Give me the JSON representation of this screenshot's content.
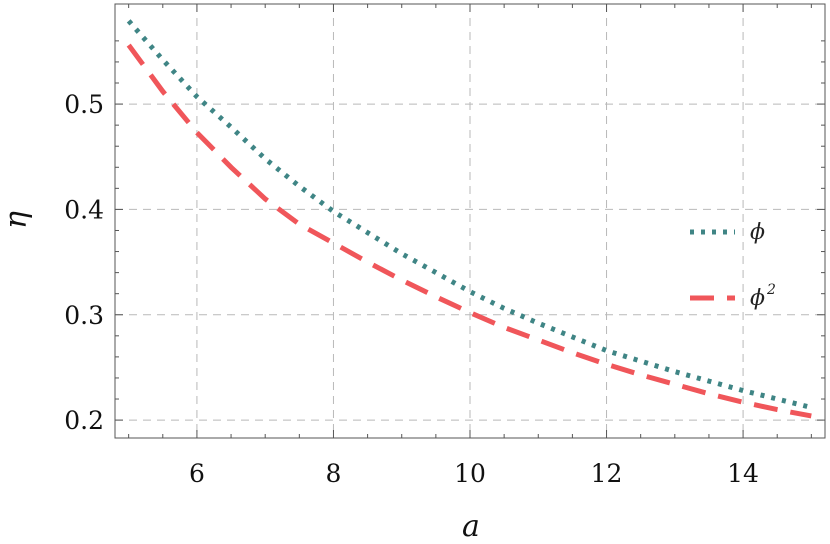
{
  "chart_data": {
    "type": "line",
    "xlabel": "a",
    "ylabel": "η",
    "xlim": [
      4.8,
      15.2
    ],
    "ylim": [
      0.183,
      0.595
    ],
    "x_ticks": [
      6,
      8,
      10,
      12,
      14
    ],
    "y_ticks": [
      0.2,
      0.3,
      0.4,
      0.5
    ],
    "x_tick_labels": [
      "6",
      "8",
      "10",
      "12",
      "14"
    ],
    "y_tick_labels": [
      "0.2",
      "0.3",
      "0.4",
      "0.5"
    ],
    "grid": true,
    "legend_position": "right",
    "series": [
      {
        "name": "ϕ",
        "style": "dotted",
        "color": "#3f8585",
        "x": [
          5,
          5.5,
          6,
          6.5,
          7,
          7.5,
          8,
          8.5,
          9,
          9.5,
          10,
          10.5,
          11,
          11.5,
          12,
          12.5,
          13,
          13.5,
          14,
          14.5,
          15
        ],
        "y": [
          0.579,
          0.542,
          0.507,
          0.478,
          0.448,
          0.422,
          0.398,
          0.378,
          0.358,
          0.34,
          0.322,
          0.306,
          0.292,
          0.279,
          0.266,
          0.256,
          0.246,
          0.237,
          0.228,
          0.22,
          0.212
        ]
      },
      {
        "name": "ϕ",
        "name_sup": "2",
        "style": "dashed",
        "color": "#f0565a",
        "x": [
          5,
          5.5,
          6,
          6.5,
          7,
          7.5,
          8,
          8.5,
          9,
          9.5,
          10,
          10.5,
          11,
          11.5,
          12,
          12.5,
          13,
          13.5,
          14,
          14.5,
          15
        ],
        "y": [
          0.556,
          0.512,
          0.473,
          0.44,
          0.41,
          0.386,
          0.368,
          0.35,
          0.333,
          0.317,
          0.302,
          0.288,
          0.276,
          0.264,
          0.253,
          0.243,
          0.234,
          0.225,
          0.217,
          0.21,
          0.204
        ]
      }
    ]
  }
}
